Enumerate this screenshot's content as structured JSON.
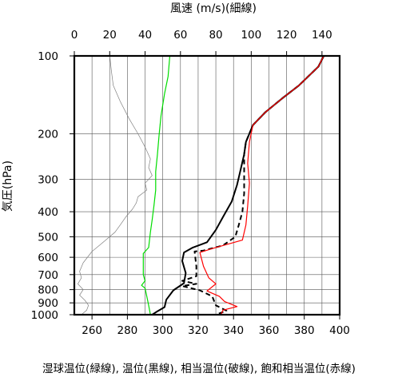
{
  "chart_data": {
    "type": "line",
    "title": "",
    "top_axis": {
      "label": "風速 (m/s)(細線)",
      "range": [
        0,
        150
      ],
      "ticks": [
        0,
        20,
        40,
        60,
        80,
        100,
        120,
        140
      ]
    },
    "bottom_axis": {
      "label": "湿球温位(緑線), 温位(黒線), 相当温位(破線), 飽和相当温位(赤線)",
      "range": [
        250,
        400
      ],
      "ticks": [
        260,
        280,
        300,
        320,
        340,
        360,
        380,
        400
      ]
    },
    "y_axis": {
      "label": "気圧(hPa)",
      "scale": "log",
      "inverted": true,
      "range": [
        100,
        1000
      ],
      "ticks": [
        100,
        200,
        300,
        400,
        500,
        600,
        700,
        800,
        900,
        1000
      ]
    },
    "grid": true,
    "series": [
      {
        "color": "#808080",
        "axis": "top",
        "style": "thin",
        "points": [
          [
            20,
            100
          ],
          [
            21,
            115
          ],
          [
            22,
            130
          ],
          [
            26,
            150
          ],
          [
            31,
            175
          ],
          [
            36,
            200
          ],
          [
            40,
            225
          ],
          [
            43,
            250
          ],
          [
            42,
            270
          ],
          [
            44,
            290
          ],
          [
            40,
            310
          ],
          [
            41,
            330
          ],
          [
            36,
            350
          ],
          [
            35,
            370
          ],
          [
            33,
            390
          ],
          [
            29,
            420
          ],
          [
            26,
            450
          ],
          [
            23,
            480
          ],
          [
            17,
            520
          ],
          [
            10,
            570
          ],
          [
            5,
            630
          ],
          [
            3,
            680
          ],
          [
            4,
            720
          ],
          [
            2,
            760
          ],
          [
            5,
            800
          ],
          [
            3,
            840
          ],
          [
            6,
            880
          ],
          [
            8,
            920
          ],
          [
            7,
            960
          ],
          [
            4,
            1000
          ]
        ]
      },
      {
        "color": "#00dd00",
        "axis": "bottom",
        "style": "solid",
        "points": [
          [
            304,
            100
          ],
          [
            303,
            120
          ],
          [
            301,
            140
          ],
          [
            299,
            170
          ],
          [
            298,
            200
          ],
          [
            297,
            240
          ],
          [
            296,
            280
          ],
          [
            296,
            330
          ],
          [
            295,
            380
          ],
          [
            294,
            430
          ],
          [
            293,
            480
          ],
          [
            292,
            550
          ],
          [
            289,
            580
          ],
          [
            289,
            640
          ],
          [
            289,
            700
          ],
          [
            290,
            740
          ],
          [
            288,
            770
          ],
          [
            290,
            790
          ],
          [
            291,
            850
          ],
          [
            292,
            920
          ],
          [
            293,
            1000
          ]
        ]
      },
      {
        "color": "#000000",
        "axis": "bottom",
        "style": "solid",
        "points": [
          [
            391,
            100
          ],
          [
            388,
            110
          ],
          [
            377,
            130
          ],
          [
            368,
            145
          ],
          [
            358,
            165
          ],
          [
            351,
            185
          ],
          [
            347,
            215
          ],
          [
            346,
            240
          ],
          [
            344,
            275
          ],
          [
            342,
            315
          ],
          [
            339,
            365
          ],
          [
            334,
            420
          ],
          [
            330,
            470
          ],
          [
            325,
            525
          ],
          [
            317,
            550
          ],
          [
            312,
            575
          ],
          [
            311,
            620
          ],
          [
            313,
            690
          ],
          [
            312,
            755
          ],
          [
            306,
            805
          ],
          [
            302,
            875
          ],
          [
            301,
            935
          ],
          [
            297,
            970
          ],
          [
            294,
            1000
          ]
        ]
      },
      {
        "color": "#000000",
        "axis": "bottom",
        "style": "dashed",
        "points": [
          [
            391,
            100
          ],
          [
            388,
            110
          ],
          [
            377,
            130
          ],
          [
            368,
            145
          ],
          [
            358,
            165
          ],
          [
            351,
            185
          ],
          [
            347,
            215
          ],
          [
            346,
            240
          ],
          [
            346,
            280
          ],
          [
            346,
            340
          ],
          [
            345,
            400
          ],
          [
            343,
            450
          ],
          [
            341,
            500
          ],
          [
            334,
            540
          ],
          [
            323,
            565
          ],
          [
            318,
            570
          ],
          [
            319,
            650
          ],
          [
            319,
            710
          ],
          [
            311,
            740
          ],
          [
            319,
            760
          ],
          [
            311,
            775
          ],
          [
            321,
            805
          ],
          [
            328,
            850
          ],
          [
            330,
            920
          ],
          [
            336,
            965
          ],
          [
            330,
            1000
          ]
        ]
      },
      {
        "color": "#ff0000",
        "axis": "bottom",
        "style": "solid",
        "points": [
          [
            391,
            100
          ],
          [
            388,
            110
          ],
          [
            377,
            130
          ],
          [
            368,
            145
          ],
          [
            358,
            165
          ],
          [
            351,
            185
          ],
          [
            349,
            215
          ],
          [
            348,
            260
          ],
          [
            349,
            310
          ],
          [
            348,
            380
          ],
          [
            347,
            450
          ],
          [
            345,
            515
          ],
          [
            328,
            555
          ],
          [
            321,
            575
          ],
          [
            323,
            650
          ],
          [
            326,
            720
          ],
          [
            330,
            760
          ],
          [
            325,
            810
          ],
          [
            332,
            850
          ],
          [
            335,
            890
          ],
          [
            342,
            930
          ],
          [
            334,
            960
          ],
          [
            333,
            1000
          ]
        ]
      }
    ]
  }
}
